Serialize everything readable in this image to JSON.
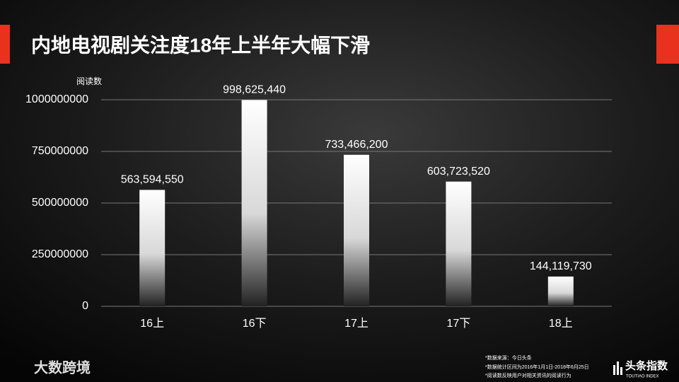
{
  "chart_data": {
    "type": "bar",
    "title": "内地电视剧关注度18年上半年大幅下滑",
    "y_label": "阅读数",
    "categories": [
      "16上",
      "16下",
      "17上",
      "17下",
      "18上"
    ],
    "values": [
      563594550,
      998625440,
      733466200,
      603723520,
      144119730
    ],
    "value_labels": [
      "563,594,550",
      "998,625,440",
      "733,466,200",
      "603,723,520",
      "144,119,730"
    ],
    "color": "#ffffff",
    "ylim": [
      0,
      1000000000
    ],
    "yticks": [
      0,
      250000000,
      500000000,
      750000000,
      1000000000
    ],
    "grid": true
  },
  "footer": {
    "notes": [
      "*数据来源：今日头条",
      "*数据统计区间为2016年1月1日-2018年6月25日",
      "*阅读数反映用户对相关资讯的阅读行为"
    ],
    "left_logo": "大数跨境",
    "right_logo": "头条指数",
    "right_logo_sub": "TOUTIAO INDEX"
  }
}
